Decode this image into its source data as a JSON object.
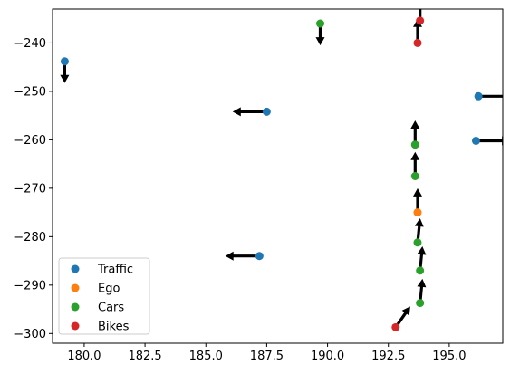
{
  "chart_data": {
    "type": "scatter",
    "xlim": [
      178.7,
      197.2
    ],
    "ylim": [
      -302,
      -233
    ],
    "xticks": [
      "180.0",
      "182.5",
      "185.0",
      "187.5",
      "190.0",
      "192.5",
      "195.0"
    ],
    "yticks": [
      "−240",
      "−250",
      "−260",
      "−270",
      "−280",
      "−290",
      "−300"
    ],
    "xtick_values": [
      180.0,
      182.5,
      185.0,
      187.5,
      190.0,
      192.5,
      195.0
    ],
    "ytick_values": [
      -240,
      -250,
      -260,
      -270,
      -280,
      -290,
      -300
    ],
    "grid": false,
    "legend_position": "lower-left",
    "series": [
      {
        "name": "Traffic",
        "color": "#1f77b4",
        "points": [
          {
            "x": 179.2,
            "y": -243.8,
            "dx": 0.0,
            "dy": -4.5
          },
          {
            "x": 187.5,
            "y": -254.2,
            "dx": -1.4,
            "dy": 0.0
          },
          {
            "x": 187.2,
            "y": -284.0,
            "dx": -1.4,
            "dy": 0.0
          },
          {
            "x": 196.2,
            "y": -251.0,
            "dx": 1.4,
            "dy": 0.0
          },
          {
            "x": 196.1,
            "y": -260.2,
            "dx": 1.4,
            "dy": 0.0
          }
        ]
      },
      {
        "name": "Ego",
        "color": "#ff7f0e",
        "points": [
          {
            "x": 193.7,
            "y": -275.0,
            "dx": 0.0,
            "dy": 5.0
          }
        ]
      },
      {
        "name": "Cars",
        "color": "#2ca02c",
        "points": [
          {
            "x": 189.7,
            "y": -236.0,
            "dx": 0.0,
            "dy": -4.5
          },
          {
            "x": 193.6,
            "y": -261.0,
            "dx": 0.0,
            "dy": 5.0
          },
          {
            "x": 193.6,
            "y": -267.5,
            "dx": 0.0,
            "dy": 5.0
          },
          {
            "x": 193.7,
            "y": -281.2,
            "dx": 0.1,
            "dy": 5.0
          },
          {
            "x": 193.8,
            "y": -287.0,
            "dx": 0.1,
            "dy": 5.0
          },
          {
            "x": 193.8,
            "y": -293.7,
            "dx": 0.1,
            "dy": 5.0
          }
        ]
      },
      {
        "name": "Bikes",
        "color": "#d62728",
        "points": [
          {
            "x": 193.7,
            "y": -240.0,
            "dx": 0.0,
            "dy": 5.0
          },
          {
            "x": 193.8,
            "y": -235.4,
            "dx": 0.0,
            "dy": 5.0
          },
          {
            "x": 192.8,
            "y": -298.7,
            "dx": 0.6,
            "dy": 4.3
          }
        ]
      }
    ]
  }
}
